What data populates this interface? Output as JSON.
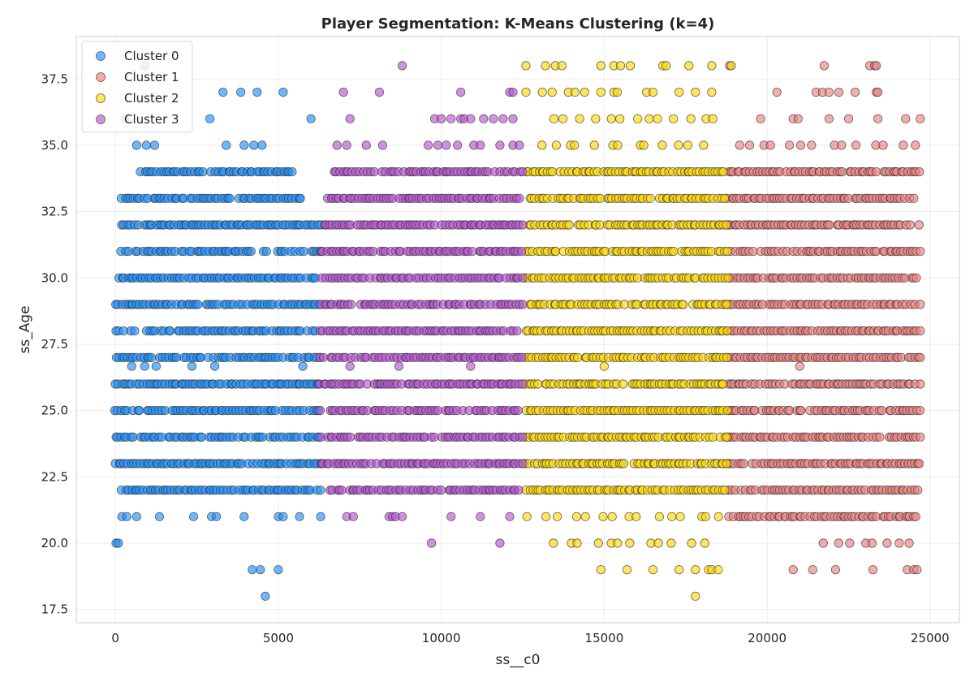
{
  "chart_data": {
    "type": "scatter",
    "title": "Player Segmentation: K-Means Clustering (k=4)",
    "xlabel": "ss__c0",
    "ylabel": "ss_Age",
    "xlim": [
      -1200,
      25900
    ],
    "ylim": [
      17.0,
      39.1
    ],
    "xticks": [
      0,
      5000,
      10000,
      15000,
      20000,
      25000
    ],
    "yticks": [
      17.5,
      20.0,
      22.5,
      25.0,
      27.5,
      30.0,
      32.5,
      35.0,
      37.5
    ],
    "grid": true,
    "legend_position": "top-left",
    "series": [
      {
        "name": "Cluster 0",
        "color": "#1e90ff",
        "x_range": [
          0,
          6300
        ],
        "rows": [
          {
            "y": 18,
            "x": [
              4600
            ]
          },
          {
            "y": 19,
            "x": [
              4200,
              4450,
              5000
            ]
          },
          {
            "y": 20,
            "x": [
              20,
              90
            ]
          },
          {
            "y": 21,
            "x": [
              200,
              350,
              650,
              1350,
              2400,
              2950,
              3100,
              3950,
              5000,
              5150,
              5650,
              6300
            ]
          },
          {
            "y": 22,
            "x": "dense:200-6300"
          },
          {
            "y": 23,
            "x": "dense:0-6300"
          },
          {
            "y": 24,
            "x": "dense:0-6300"
          },
          {
            "y": 25,
            "x": "dense:0-6300"
          },
          {
            "y": 26,
            "x": "dense:0-6300"
          },
          {
            "y": 26.67,
            "x": [
              500,
              900,
              1250,
              2350,
              3050,
              5750
            ]
          },
          {
            "y": 27,
            "x": "dense:0-6300"
          },
          {
            "y": 28,
            "x": "dense:0-6300"
          },
          {
            "y": 29,
            "x": "dense:0-6300"
          },
          {
            "y": 30,
            "x": "dense:0-6300"
          },
          {
            "y": 31,
            "x": "dense:200-6300"
          },
          {
            "y": 32,
            "x": "dense:100-6300"
          },
          {
            "y": 33,
            "x": "dense:200-5800"
          },
          {
            "y": 34,
            "x": "dense:800-5500"
          },
          {
            "y": 35,
            "x": [
              650,
              950,
              1200,
              3400,
              3950,
              4250,
              4500
            ]
          },
          {
            "y": 36,
            "x": [
              300,
              2900,
              6000
            ]
          },
          {
            "y": 37,
            "x": [
              3300,
              3850,
              4350,
              5150
            ]
          },
          {
            "y": 38,
            "x": [
              900
            ]
          }
        ]
      },
      {
        "name": "Cluster 1",
        "color": "#f08080",
        "x_range": [
          18800,
          24700
        ],
        "rows": [
          {
            "y": 19,
            "x": [
              20800,
              21400,
              22100,
              23250,
              24300,
              24500,
              24600
            ]
          },
          {
            "y": 20,
            "x": "sparse:21600-24700"
          },
          {
            "y": 21,
            "x": "dense:18800-24600"
          },
          {
            "y": 22,
            "x": "dense:18800-24700"
          },
          {
            "y": 23,
            "x": "dense:18800-24700"
          },
          {
            "y": 24,
            "x": "dense:18800-24700"
          },
          {
            "y": 25,
            "x": "dense:18800-24700"
          },
          {
            "y": 26,
            "x": "dense:18800-24700"
          },
          {
            "y": 26.67,
            "x": [
              21000
            ]
          },
          {
            "y": 27,
            "x": "dense:18800-24700"
          },
          {
            "y": 28,
            "x": "dense:18800-24700"
          },
          {
            "y": 29,
            "x": "dense:18800-24700"
          },
          {
            "y": 30,
            "x": "dense:18800-24700"
          },
          {
            "y": 31,
            "x": "dense:18800-24700"
          },
          {
            "y": 32,
            "x": "dense:18800-24700"
          },
          {
            "y": 33,
            "x": "dense:18800-24500"
          },
          {
            "y": 34,
            "x": "dense:18800-24700"
          },
          {
            "y": 35,
            "x": "sparse:19000-24700"
          },
          {
            "y": 36,
            "x": [
              19800,
              20800,
              20950,
              21900,
              22500,
              23400,
              24250,
              24700
            ]
          },
          {
            "y": 37,
            "x": [
              20300,
              21500,
              21700,
              21900,
              22200,
              22700,
              23350,
              23400
            ]
          },
          {
            "y": 38,
            "x": [
              18850,
              21750,
              23150,
              23300,
              23350
            ]
          }
        ]
      },
      {
        "name": "Cluster 2",
        "color": "#ffd700",
        "x_range": [
          12500,
          18800
        ],
        "rows": [
          {
            "y": 18,
            "x": [
              17800
            ]
          },
          {
            "y": 19,
            "x": [
              14900,
              15700,
              16500,
              17300,
              17800,
              18200,
              18300,
              18500
            ]
          },
          {
            "y": 20,
            "x": "sparse:13400-18400"
          },
          {
            "y": 21,
            "x": "sparse:12800-18700"
          },
          {
            "y": 22,
            "x": "dense:12600-18700"
          },
          {
            "y": 23,
            "x": "dense:12600-18800"
          },
          {
            "y": 24,
            "x": "dense:12600-18800"
          },
          {
            "y": 25,
            "x": "dense:12600-18800"
          },
          {
            "y": 26,
            "x": "dense:12600-18800"
          },
          {
            "y": 26.67,
            "x": [
              15000
            ]
          },
          {
            "y": 27,
            "x": "dense:12600-18800"
          },
          {
            "y": 28,
            "x": "dense:12600-18800"
          },
          {
            "y": 29,
            "x": "dense:12600-18800"
          },
          {
            "y": 30,
            "x": "dense:12600-18800"
          },
          {
            "y": 31,
            "x": "dense:12600-18800"
          },
          {
            "y": 32,
            "x": "dense:12600-18800"
          },
          {
            "y": 33,
            "x": "dense:12700-18700"
          },
          {
            "y": 34,
            "x": "dense:12600-18700"
          },
          {
            "y": 35,
            "x": "sparse:13000-18400"
          },
          {
            "y": 36,
            "x": "sparse:13400-18500"
          },
          {
            "y": 37,
            "x": [
              12600,
              13100,
              13400,
              13900,
              14100,
              14400,
              14900,
              15300,
              15400,
              16300,
              16500,
              17300,
              17800,
              18300
            ]
          },
          {
            "y": 38,
            "x": [
              12600,
              13200,
              13500,
              13700,
              14900,
              15300,
              15500,
              15800,
              16800,
              16900,
              17600,
              18300,
              18900
            ]
          }
        ]
      },
      {
        "name": "Cluster 3",
        "color": "#ba55d3",
        "x_range": [
          6300,
          12500
        ],
        "rows": [
          {
            "y": 20,
            "x": [
              9700,
              11800
            ]
          },
          {
            "y": 21,
            "x": [
              7100,
              7300,
              8400,
              8500,
              8600,
              8800,
              10300,
              11200,
              12100
            ]
          },
          {
            "y": 22,
            "x": "dense:6500-12400"
          },
          {
            "y": 23,
            "x": "dense:6300-12500"
          },
          {
            "y": 24,
            "x": "dense:6300-12500"
          },
          {
            "y": 25,
            "x": "dense:6300-12500"
          },
          {
            "y": 26,
            "x": "dense:6300-12500"
          },
          {
            "y": 26.67,
            "x": [
              7200,
              8700,
              10900
            ]
          },
          {
            "y": 27,
            "x": "dense:6300-12500"
          },
          {
            "y": 28,
            "x": "dense:6300-12500"
          },
          {
            "y": 29,
            "x": "dense:6300-12500"
          },
          {
            "y": 30,
            "x": "dense:6300-12500"
          },
          {
            "y": 31,
            "x": "dense:6300-12500"
          },
          {
            "y": 32,
            "x": "dense:6400-12500"
          },
          {
            "y": 33,
            "x": "dense:6500-12400"
          },
          {
            "y": 34,
            "x": "dense:6700-12500"
          },
          {
            "y": 35,
            "x": [
              6800,
              7100,
              7700,
              8200,
              9600,
              9900,
              10150,
              10500,
              11000,
              11200,
              11800,
              12200,
              12400
            ]
          },
          {
            "y": 36,
            "x": [
              7200,
              9800,
              10000,
              10300,
              10600,
              10700,
              10900,
              11300,
              11600,
              11900,
              12200
            ]
          },
          {
            "y": 37,
            "x": [
              7000,
              8100,
              10600,
              12100,
              12200
            ]
          },
          {
            "y": 38,
            "x": [
              8800
            ]
          }
        ]
      }
    ]
  }
}
